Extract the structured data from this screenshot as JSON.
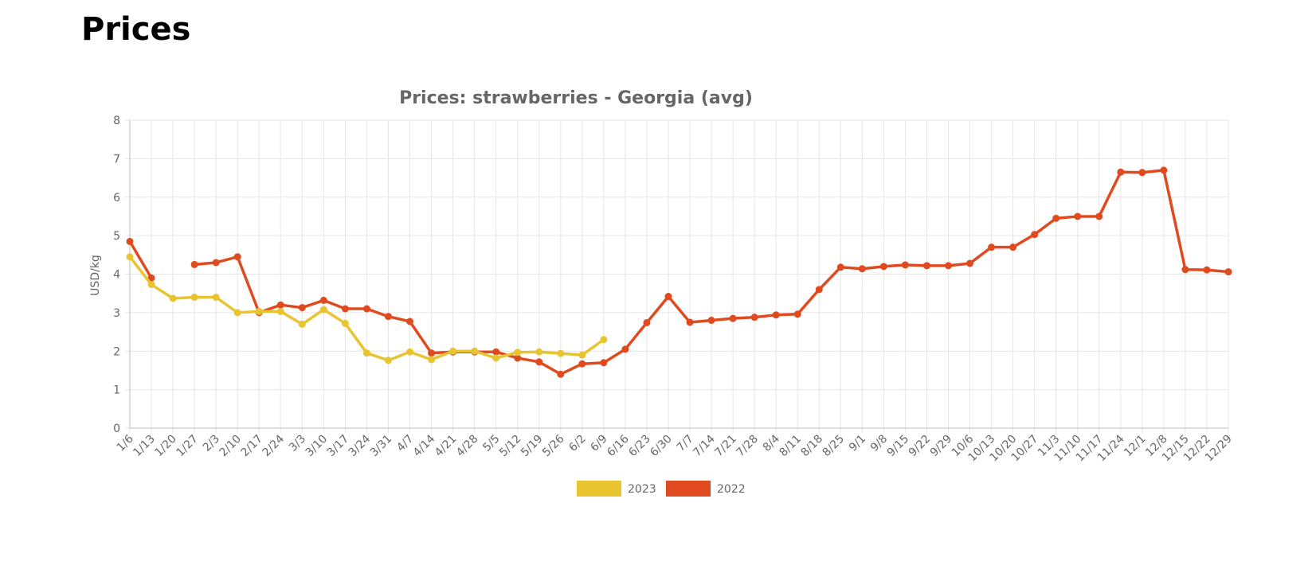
{
  "page": {
    "title": "Prices"
  },
  "chart_data": {
    "type": "line",
    "title": "Prices: strawberries - Georgia (avg)",
    "xlabel": "",
    "ylabel": "USD/kg",
    "ylim": [
      0,
      8
    ],
    "yticks": [
      0,
      1,
      2,
      3,
      4,
      5,
      6,
      7,
      8
    ],
    "grid": true,
    "legend_position": "bottom",
    "categories": [
      "1/6",
      "1/13",
      "1/20",
      "1/27",
      "2/3",
      "2/10",
      "2/17",
      "2/24",
      "3/3",
      "3/10",
      "3/17",
      "3/24",
      "3/31",
      "4/7",
      "4/14",
      "4/21",
      "4/28",
      "5/5",
      "5/12",
      "5/19",
      "5/26",
      "6/2",
      "6/9",
      "6/16",
      "6/23",
      "6/30",
      "7/7",
      "7/14",
      "7/21",
      "7/28",
      "8/4",
      "8/11",
      "8/18",
      "8/25",
      "9/1",
      "9/8",
      "9/15",
      "9/22",
      "9/29",
      "10/6",
      "10/13",
      "10/20",
      "10/27",
      "11/3",
      "11/10",
      "11/17",
      "11/24",
      "12/1",
      "12/8",
      "12/15",
      "12/22",
      "12/29"
    ],
    "series": [
      {
        "name": "2023",
        "color": "#e8c530",
        "values": [
          4.45,
          3.73,
          3.37,
          3.4,
          3.4,
          3.0,
          3.03,
          3.03,
          2.7,
          3.08,
          2.72,
          1.95,
          1.76,
          1.98,
          1.78,
          2.0,
          2.0,
          1.82,
          1.97,
          1.98,
          1.94,
          1.9,
          2.3,
          null,
          null,
          null,
          null,
          null,
          null,
          null,
          null,
          null,
          null,
          null,
          null,
          null,
          null,
          null,
          null,
          null,
          null,
          null,
          null,
          null,
          null,
          null,
          null,
          null,
          null,
          null,
          null,
          null
        ]
      },
      {
        "name": "2022",
        "color": "#e04a1e",
        "values": [
          4.85,
          3.9,
          null,
          4.25,
          4.3,
          4.45,
          3.0,
          3.2,
          3.13,
          3.32,
          3.1,
          3.1,
          2.9,
          2.77,
          1.95,
          1.98,
          1.98,
          1.98,
          1.82,
          1.72,
          1.4,
          1.67,
          1.7,
          2.05,
          2.74,
          3.42,
          2.75,
          2.8,
          2.85,
          2.88,
          2.94,
          2.96,
          3.6,
          4.18,
          4.14,
          4.2,
          4.24,
          4.22,
          4.22,
          4.28,
          4.7,
          4.7,
          5.03,
          5.45,
          5.5,
          5.5,
          6.65,
          6.64,
          6.7,
          4.12,
          4.11,
          4.06
        ]
      }
    ]
  }
}
